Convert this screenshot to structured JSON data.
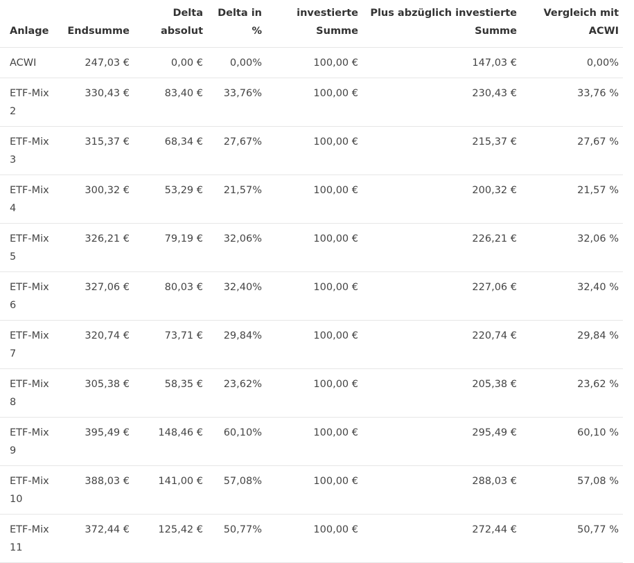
{
  "table": {
    "headers": [
      "Anlage",
      "Endsumme",
      "Delta absolut",
      "Delta in %",
      "investierte Summe",
      "Plus abzüglich investierte Summe",
      "Vergleich mit ACWI"
    ],
    "rows": [
      [
        "ACWI",
        "247,03 €",
        "0,00 €",
        "0,00%",
        "100,00 €",
        "147,03 €",
        "0,00%"
      ],
      [
        "ETF-Mix 2",
        "330,43 €",
        "83,40 €",
        "33,76%",
        "100,00 €",
        "230,43 €",
        "33,76 %"
      ],
      [
        "ETF-Mix 3",
        "315,37 €",
        "68,34 €",
        "27,67%",
        "100,00 €",
        "215,37 €",
        "27,67 %"
      ],
      [
        "ETF-Mix 4",
        "300,32 €",
        "53,29 €",
        "21,57%",
        "100,00 €",
        "200,32 €",
        "21,57 %"
      ],
      [
        "ETF-Mix 5",
        "326,21 €",
        "79,19 €",
        "32,06%",
        "100,00 €",
        "226,21 €",
        "32,06 %"
      ],
      [
        "ETF-Mix 6",
        "327,06 €",
        "80,03 €",
        "32,40%",
        "100,00 €",
        "227,06 €",
        "32,40 %"
      ],
      [
        "ETF-Mix 7",
        "320,74 €",
        "73,71 €",
        "29,84%",
        "100,00 €",
        "220,74 €",
        "29,84 %"
      ],
      [
        "ETF-Mix 8",
        "305,38 €",
        "58,35 €",
        "23,62%",
        "100,00 €",
        "205,38 €",
        "23,62 %"
      ],
      [
        "ETF-Mix 9",
        "395,49 €",
        "148,46 €",
        "60,10%",
        "100,00 €",
        "295,49 €",
        "60,10 %"
      ],
      [
        "ETF-Mix 10",
        "388,03 €",
        "141,00 €",
        "57,08%",
        "100,00 €",
        "288,03 €",
        "57,08 %"
      ],
      [
        "ETF-Mix 11",
        "372,44 €",
        "125,42 €",
        "50,77%",
        "100,00 €",
        "272,44 €",
        "50,77 %"
      ]
    ]
  }
}
